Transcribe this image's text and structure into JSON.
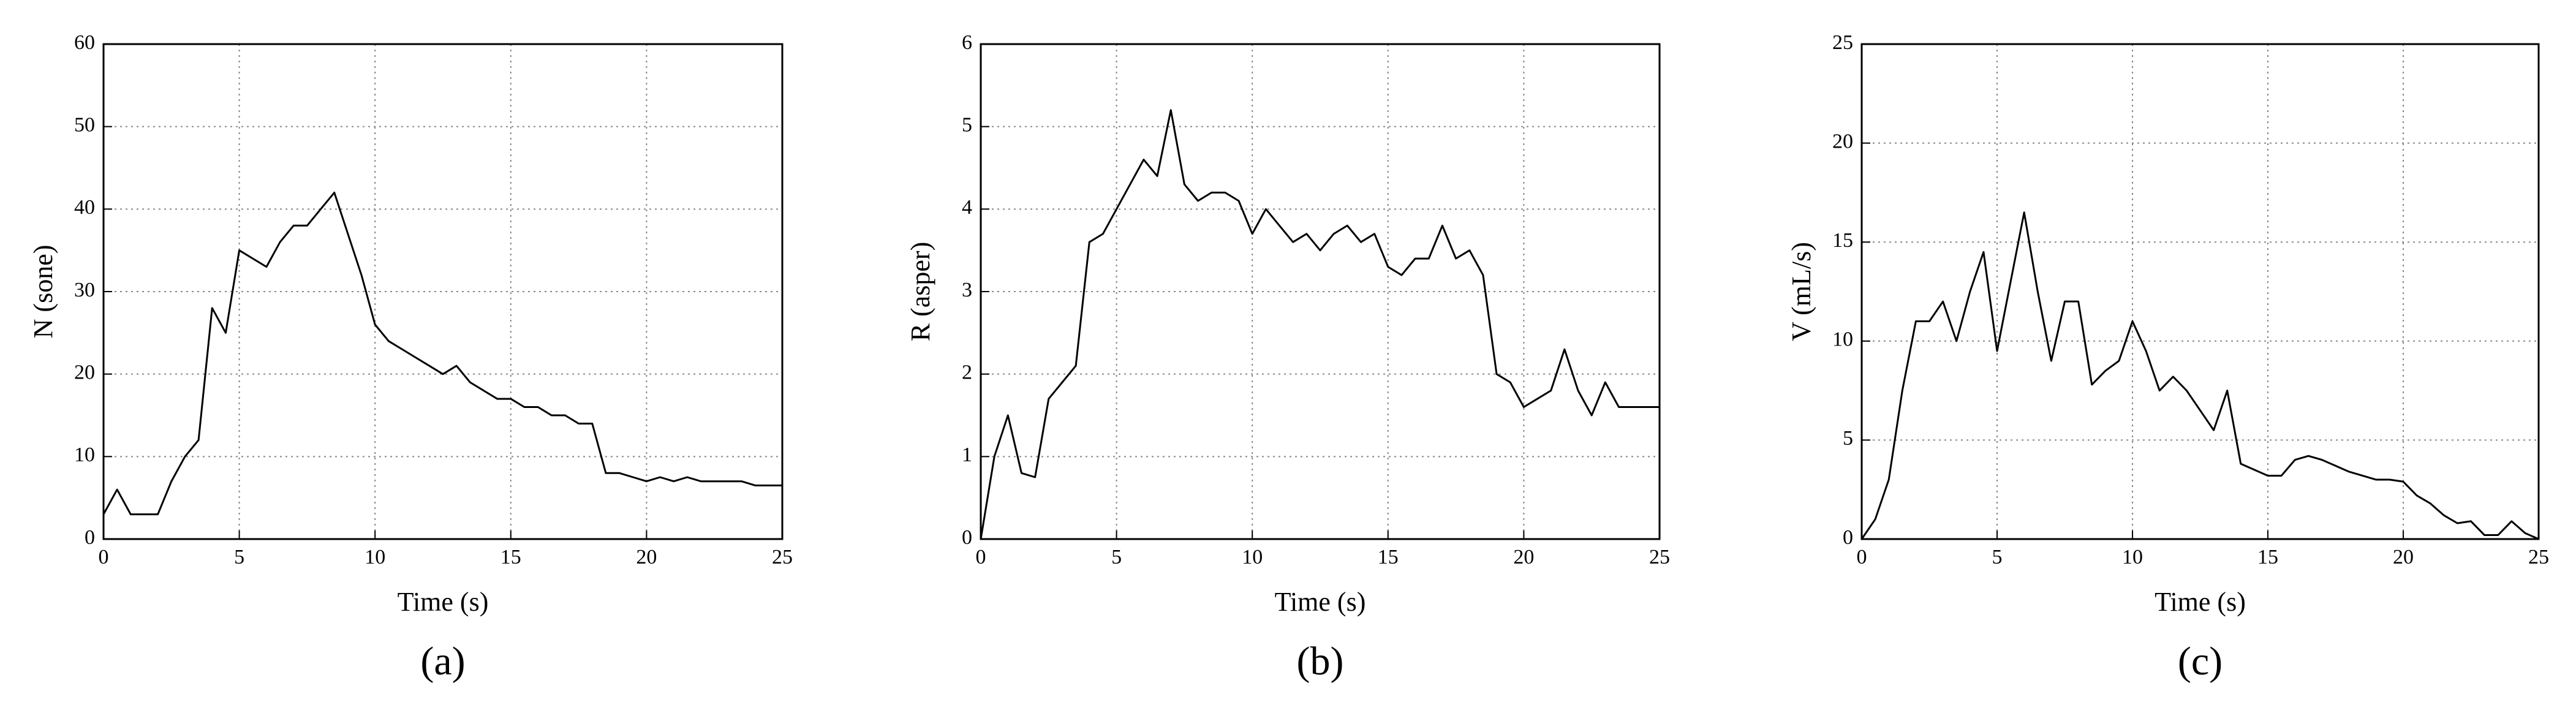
{
  "chart_data": [
    {
      "type": "line",
      "caption": "(a)",
      "xlabel": "Time (s)",
      "ylabel": "N (sone)",
      "color": "#000000",
      "grid": true,
      "xlim": [
        0,
        25
      ],
      "xticks": [
        0,
        5,
        10,
        15,
        20,
        25
      ],
      "ylim": [
        0,
        60
      ],
      "yticks": [
        0,
        10,
        20,
        30,
        40,
        50,
        60
      ],
      "x": [
        0,
        0.5,
        1,
        1.5,
        2,
        2.5,
        3,
        3.5,
        4,
        4.5,
        5,
        5.5,
        6,
        6.5,
        7,
        7.5,
        8,
        8.5,
        9,
        9.5,
        10,
        10.5,
        11,
        11.5,
        12,
        12.5,
        13,
        13.5,
        14,
        14.5,
        15,
        15.5,
        16,
        16.5,
        17,
        17.5,
        18,
        18.5,
        19,
        19.5,
        20,
        20.5,
        21,
        21.5,
        22,
        22.5,
        23,
        23.5,
        24,
        24.5,
        25
      ],
      "values": [
        3,
        6,
        3,
        3,
        3,
        7,
        10,
        12,
        28,
        25,
        35,
        34,
        33,
        36,
        38,
        38,
        40,
        42,
        37,
        32,
        26,
        24,
        23,
        22,
        21,
        20,
        21,
        19,
        18,
        17,
        17,
        16,
        16,
        15,
        15,
        14,
        14,
        8,
        8,
        7.5,
        7,
        7.5,
        7,
        7.5,
        7,
        7,
        7,
        7,
        6.5,
        6.5,
        6.5
      ]
    },
    {
      "type": "line",
      "caption": "(b)",
      "xlabel": "Time (s)",
      "ylabel": "R (asper)",
      "color": "#000000",
      "grid": true,
      "xlim": [
        0,
        25
      ],
      "xticks": [
        0,
        5,
        10,
        15,
        20,
        25
      ],
      "ylim": [
        0,
        6
      ],
      "yticks": [
        0,
        1,
        2,
        3,
        4,
        5,
        6
      ],
      "x": [
        0,
        0.5,
        1,
        1.5,
        2,
        2.5,
        3,
        3.5,
        4,
        4.5,
        5,
        5.5,
        6,
        6.5,
        7,
        7.5,
        8,
        8.5,
        9,
        9.5,
        10,
        10.5,
        11,
        11.5,
        12,
        12.5,
        13,
        13.5,
        14,
        14.5,
        15,
        15.5,
        16,
        16.5,
        17,
        17.5,
        18,
        18.5,
        19,
        19.5,
        20,
        20.5,
        21,
        21.5,
        22,
        22.5,
        23,
        23.5,
        24,
        24.5,
        25
      ],
      "values": [
        0,
        1,
        1.5,
        0.8,
        0.75,
        1.7,
        1.9,
        2.1,
        3.6,
        3.7,
        4,
        4.3,
        4.6,
        4.4,
        5.2,
        4.3,
        4.1,
        4.2,
        4.2,
        4.1,
        3.7,
        4,
        3.8,
        3.6,
        3.7,
        3.5,
        3.7,
        3.8,
        3.6,
        3.7,
        3.3,
        3.2,
        3.4,
        3.4,
        3.8,
        3.4,
        3.5,
        3.2,
        2,
        1.9,
        1.6,
        1.7,
        1.8,
        2.3,
        1.8,
        1.5,
        1.9,
        1.6,
        1.6,
        1.6,
        1.6
      ]
    },
    {
      "type": "line",
      "caption": "(c)",
      "xlabel": "Time (s)",
      "ylabel": "V (mL/s)",
      "color": "#000000",
      "grid": true,
      "xlim": [
        0,
        25
      ],
      "xticks": [
        0,
        5,
        10,
        15,
        20,
        25
      ],
      "ylim": [
        0,
        25
      ],
      "yticks": [
        0,
        5,
        10,
        15,
        20,
        25
      ],
      "x": [
        0,
        0.5,
        1,
        1.5,
        2,
        2.5,
        3,
        3.5,
        4,
        4.5,
        5,
        5.5,
        6,
        6.5,
        7,
        7.5,
        8,
        8.5,
        9,
        9.5,
        10,
        10.5,
        11,
        11.5,
        12,
        12.5,
        13,
        13.5,
        14,
        14.5,
        15,
        15.5,
        16,
        16.5,
        17,
        17.5,
        18,
        18.5,
        19,
        19.5,
        20,
        20.5,
        21,
        21.5,
        22,
        22.5,
        23,
        23.5,
        24,
        24.5,
        25
      ],
      "values": [
        0,
        1,
        3,
        7.5,
        11,
        11,
        12,
        10,
        12.5,
        14.5,
        9.5,
        13,
        16.5,
        12.5,
        9,
        12,
        12,
        7.8,
        8.5,
        9,
        11,
        9.5,
        7.5,
        8.2,
        7.5,
        6.5,
        5.5,
        7.5,
        3.8,
        3.5,
        3.2,
        3.2,
        4,
        4.2,
        4,
        3.7,
        3.4,
        3.2,
        3,
        3,
        2.9,
        2.2,
        1.8,
        1.2,
        0.8,
        0.9,
        0.2,
        0.2,
        0.9,
        0.3,
        0
      ]
    }
  ]
}
